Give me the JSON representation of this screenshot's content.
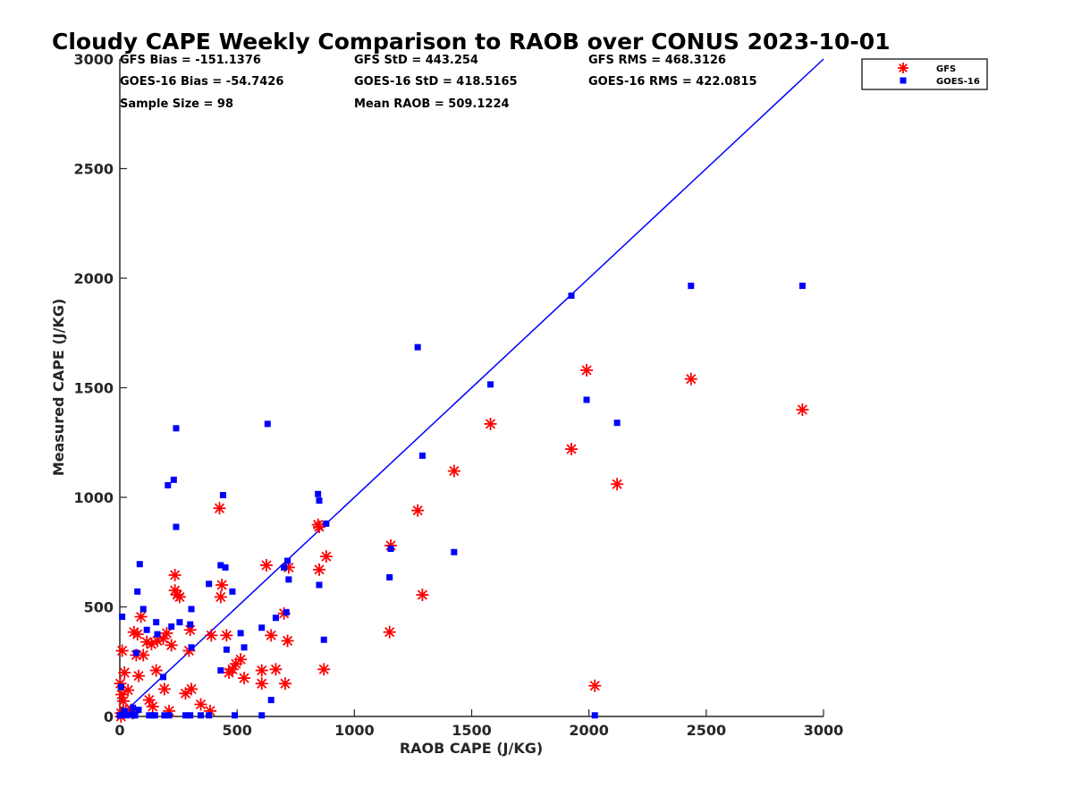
{
  "chart_data": {
    "type": "scatter",
    "title": "Cloudy CAPE Weekly Comparison to RAOB over CONUS 2023-10-01",
    "xlabel": "RAOB CAPE (J/KG)",
    "ylabel": "Measured CAPE (J/KG)",
    "xlim": [
      0,
      3000
    ],
    "ylim": [
      0,
      3000
    ],
    "xticks": [
      "0",
      "500",
      "1000",
      "1500",
      "2000",
      "2500",
      "3000"
    ],
    "yticks": [
      "0",
      "500",
      "1000",
      "1500",
      "2000",
      "2500",
      "3000"
    ],
    "grid": false,
    "legend_position": "top-right-outside",
    "reference_line": {
      "x": [
        0,
        3000
      ],
      "y": [
        0,
        3000
      ],
      "color": "#0000ff"
    },
    "stats": [
      [
        "GFS Bias = -151.1376",
        "GFS StD = 443.254",
        "GFS RMS = 468.3126"
      ],
      [
        "GOES-16 Bias = -54.7426",
        "GOES-16 StD = 418.5165",
        "GOES-16 RMS = 422.0815"
      ],
      [
        "Sample Size = 98",
        "Mean RAOB = 509.1224",
        ""
      ]
    ],
    "series": [
      {
        "name": "GFS",
        "marker": "asterisk",
        "color": "#ff0000",
        "points": [
          [
            2910,
            1400
          ],
          [
            2435,
            1540
          ],
          [
            2120,
            1060
          ],
          [
            1990,
            1580
          ],
          [
            1925,
            1220
          ],
          [
            2025,
            140
          ],
          [
            1580,
            1335
          ],
          [
            1425,
            1120
          ],
          [
            1290,
            555
          ],
          [
            1270,
            940
          ],
          [
            1155,
            780
          ],
          [
            1150,
            385
          ],
          [
            880,
            730
          ],
          [
            870,
            215
          ],
          [
            850,
            670
          ],
          [
            850,
            865
          ],
          [
            845,
            875
          ],
          [
            720,
            680
          ],
          [
            715,
            345
          ],
          [
            705,
            150
          ],
          [
            700,
            470
          ],
          [
            665,
            215
          ],
          [
            645,
            370
          ],
          [
            625,
            690
          ],
          [
            605,
            210
          ],
          [
            605,
            150
          ],
          [
            530,
            175
          ],
          [
            515,
            260
          ],
          [
            495,
            240
          ],
          [
            480,
            215
          ],
          [
            465,
            200
          ],
          [
            455,
            370
          ],
          [
            435,
            600
          ],
          [
            430,
            545
          ],
          [
            425,
            950
          ],
          [
            390,
            370
          ],
          [
            385,
            25
          ],
          [
            345,
            55
          ],
          [
            305,
            125
          ],
          [
            300,
            395
          ],
          [
            295,
            300
          ],
          [
            280,
            105
          ],
          [
            255,
            545
          ],
          [
            245,
            555
          ],
          [
            235,
            575
          ],
          [
            235,
            645
          ],
          [
            220,
            325
          ],
          [
            210,
            25
          ],
          [
            200,
            380
          ],
          [
            190,
            125
          ],
          [
            185,
            355
          ],
          [
            160,
            345
          ],
          [
            155,
            210
          ],
          [
            140,
            45
          ],
          [
            135,
            330
          ],
          [
            125,
            75
          ],
          [
            115,
            340
          ],
          [
            100,
            280
          ],
          [
            90,
            455
          ],
          [
            80,
            185
          ],
          [
            75,
            375
          ],
          [
            70,
            280
          ],
          [
            60,
            385
          ],
          [
            55,
            15
          ],
          [
            50,
            30
          ],
          [
            35,
            120
          ],
          [
            25,
            25
          ],
          [
            20,
            200
          ],
          [
            15,
            70
          ],
          [
            10,
            300
          ],
          [
            8,
            100
          ],
          [
            5,
            15
          ],
          [
            5,
            0
          ],
          [
            2,
            150
          ]
        ]
      },
      {
        "name": "GOES-16",
        "marker": "square",
        "color": "#0000ff",
        "points": [
          [
            2910,
            1965
          ],
          [
            2435,
            1965
          ],
          [
            2120,
            1340
          ],
          [
            1990,
            1445
          ],
          [
            1925,
            1920
          ],
          [
            2025,
            5
          ],
          [
            1580,
            1515
          ],
          [
            1425,
            750
          ],
          [
            1290,
            1190
          ],
          [
            1270,
            1685
          ],
          [
            1155,
            765
          ],
          [
            1150,
            635
          ],
          [
            880,
            880
          ],
          [
            870,
            350
          ],
          [
            850,
            600
          ],
          [
            850,
            985
          ],
          [
            845,
            1015
          ],
          [
            720,
            625
          ],
          [
            715,
            710
          ],
          [
            710,
            475
          ],
          [
            700,
            680
          ],
          [
            665,
            450
          ],
          [
            645,
            75
          ],
          [
            630,
            1335
          ],
          [
            605,
            405
          ],
          [
            605,
            5
          ],
          [
            530,
            315
          ],
          [
            515,
            380
          ],
          [
            490,
            5
          ],
          [
            480,
            570
          ],
          [
            455,
            305
          ],
          [
            450,
            680
          ],
          [
            440,
            1010
          ],
          [
            430,
            690
          ],
          [
            430,
            210
          ],
          [
            380,
            5
          ],
          [
            380,
            605
          ],
          [
            345,
            5
          ],
          [
            305,
            315
          ],
          [
            305,
            490
          ],
          [
            300,
            5
          ],
          [
            300,
            420
          ],
          [
            280,
            5
          ],
          [
            255,
            430
          ],
          [
            240,
            1315
          ],
          [
            240,
            865
          ],
          [
            230,
            1080
          ],
          [
            220,
            410
          ],
          [
            210,
            5
          ],
          [
            205,
            1055
          ],
          [
            190,
            5
          ],
          [
            185,
            180
          ],
          [
            160,
            375
          ],
          [
            155,
            430
          ],
          [
            150,
            5
          ],
          [
            140,
            5
          ],
          [
            125,
            5
          ],
          [
            115,
            395
          ],
          [
            100,
            490
          ],
          [
            85,
            695
          ],
          [
            80,
            30
          ],
          [
            75,
            570
          ],
          [
            70,
            290
          ],
          [
            65,
            5
          ],
          [
            60,
            5
          ],
          [
            55,
            40
          ],
          [
            50,
            10
          ],
          [
            30,
            5
          ],
          [
            20,
            25
          ],
          [
            15,
            10
          ],
          [
            10,
            455
          ],
          [
            5,
            5
          ],
          [
            5,
            135
          ],
          [
            0,
            5
          ]
        ]
      }
    ]
  }
}
